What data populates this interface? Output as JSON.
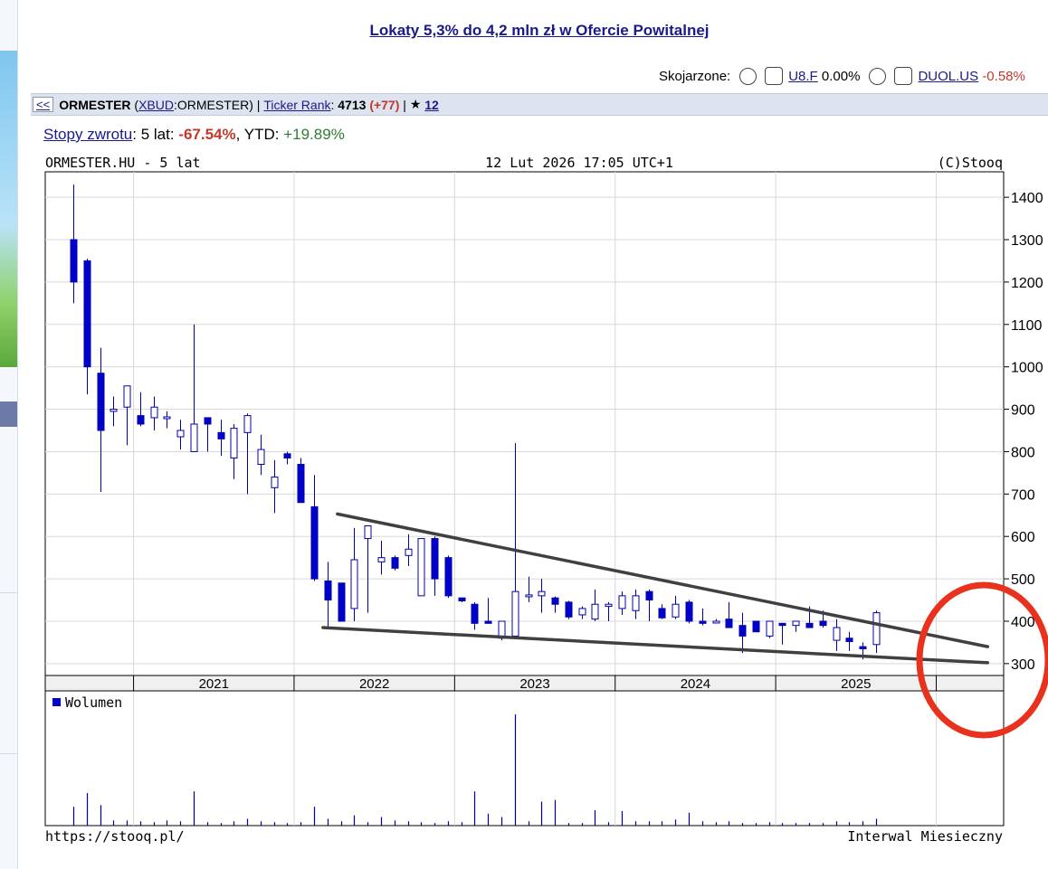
{
  "ad_link": "Lokaty 5,3% do 4,2 mln zł w Ofercie Powitalnej",
  "related": {
    "label": "Skojarzone:",
    "items": [
      {
        "symbol": "U8.F",
        "change": "0.00%"
      },
      {
        "symbol": "DUOL.US",
        "change": "-0.58%"
      }
    ]
  },
  "header_bar": {
    "back": "<<",
    "name": "ORMESTER",
    "market": "XBUD",
    "symbol_suffix": ":ORMESTER)",
    "ticker_rank_label": "Ticker Rank",
    "ticker_rank_sep": ":",
    "rank": "4713",
    "rank_change": "(+77)",
    "divider": "|",
    "star": "★",
    "watch_count": "12"
  },
  "returns": {
    "link": "Stopy zwrotu",
    "label5": ": 5 lat: ",
    "value5": "-67.54%",
    "ytd_label": ", YTD: ",
    "ytd_value": "+19.89%"
  },
  "chart_data": {
    "type": "candlestick",
    "title_left": "ORMESTER.HU - 5 lat",
    "title_center": "12 Lut 2026 17:05 UTC+1",
    "title_right": "(C)Stooq",
    "footer_left": "https://stooq.pl/",
    "footer_right": "Interwal Miesieczny",
    "volume_label": "Wolumen",
    "x_labels": [
      "2021",
      "2022",
      "2023",
      "2024",
      "2025"
    ],
    "y_ticks": [
      300,
      400,
      500,
      600,
      700,
      800,
      900,
      1000,
      1100,
      1200,
      1300,
      1400
    ],
    "y_range": [
      272,
      1460
    ],
    "grid": true,
    "colors": {
      "up": "#ffffff",
      "down": "#0000cc",
      "outline": "#0000aa",
      "trendline": "#404040",
      "highlight": "#e8321e"
    },
    "candles": [
      {
        "o": 1300,
        "h": 1430,
        "l": 1150,
        "c": 1200,
        "v": 22
      },
      {
        "o": 1250,
        "h": 1255,
        "l": 935,
        "c": 1000,
        "v": 38
      },
      {
        "o": 985,
        "h": 1045,
        "l": 705,
        "c": 850,
        "v": 24
      },
      {
        "o": 895,
        "h": 930,
        "l": 860,
        "c": 900,
        "v": 6
      },
      {
        "o": 905,
        "h": 955,
        "l": 815,
        "c": 955,
        "v": 6
      },
      {
        "o": 885,
        "h": 940,
        "l": 860,
        "c": 865,
        "v": 5
      },
      {
        "o": 880,
        "h": 930,
        "l": 850,
        "c": 905,
        "v": 4
      },
      {
        "o": 880,
        "h": 895,
        "l": 855,
        "c": 882,
        "v": 6
      },
      {
        "o": 835,
        "h": 875,
        "l": 805,
        "c": 850,
        "v": 5
      },
      {
        "o": 800,
        "h": 1100,
        "l": 800,
        "c": 865,
        "v": 40
      },
      {
        "o": 880,
        "h": 880,
        "l": 800,
        "c": 865,
        "v": 4
      },
      {
        "o": 845,
        "h": 875,
        "l": 790,
        "c": 830,
        "v": 3
      },
      {
        "o": 785,
        "h": 865,
        "l": 735,
        "c": 855,
        "v": 5
      },
      {
        "o": 845,
        "h": 890,
        "l": 700,
        "c": 885,
        "v": 8
      },
      {
        "o": 770,
        "h": 840,
        "l": 745,
        "c": 805,
        "v": 5
      },
      {
        "o": 715,
        "h": 780,
        "l": 655,
        "c": 740,
        "v": 4
      },
      {
        "o": 795,
        "h": 800,
        "l": 770,
        "c": 785,
        "v": 3
      },
      {
        "o": 770,
        "h": 785,
        "l": 680,
        "c": 680,
        "v": 4
      },
      {
        "o": 670,
        "h": 745,
        "l": 495,
        "c": 500,
        "v": 22
      },
      {
        "o": 495,
        "h": 540,
        "l": 385,
        "c": 450,
        "v": 8
      },
      {
        "o": 490,
        "h": 490,
        "l": 400,
        "c": 400,
        "v": 5
      },
      {
        "o": 430,
        "h": 620,
        "l": 400,
        "c": 545,
        "v": 12
      },
      {
        "o": 595,
        "h": 625,
        "l": 420,
        "c": 625,
        "v": 4
      },
      {
        "o": 540,
        "h": 590,
        "l": 510,
        "c": 550,
        "v": 10
      },
      {
        "o": 550,
        "h": 555,
        "l": 520,
        "c": 525,
        "v": 6
      },
      {
        "o": 555,
        "h": 605,
        "l": 530,
        "c": 570,
        "v": 5
      },
      {
        "o": 460,
        "h": 595,
        "l": 460,
        "c": 595,
        "v": 4
      },
      {
        "o": 595,
        "h": 600,
        "l": 460,
        "c": 500,
        "v": 3
      },
      {
        "o": 550,
        "h": 555,
        "l": 455,
        "c": 460,
        "v": 5
      },
      {
        "o": 455,
        "h": 455,
        "l": 445,
        "c": 448,
        "v": 4
      },
      {
        "o": 440,
        "h": 445,
        "l": 380,
        "c": 395,
        "v": 40
      },
      {
        "o": 400,
        "h": 455,
        "l": 395,
        "c": 395,
        "v": 14
      },
      {
        "o": 360,
        "h": 400,
        "l": 355,
        "c": 400,
        "v": 10
      },
      {
        "o": 365,
        "h": 820,
        "l": 360,
        "c": 470,
        "v": 130
      },
      {
        "o": 460,
        "h": 505,
        "l": 445,
        "c": 462,
        "v": 5
      },
      {
        "o": 460,
        "h": 500,
        "l": 420,
        "c": 470,
        "v": 28
      },
      {
        "o": 455,
        "h": 458,
        "l": 420,
        "c": 440,
        "v": 30
      },
      {
        "o": 445,
        "h": 448,
        "l": 405,
        "c": 410,
        "v": 3
      },
      {
        "o": 415,
        "h": 435,
        "l": 405,
        "c": 430,
        "v": 3
      },
      {
        "o": 405,
        "h": 475,
        "l": 400,
        "c": 440,
        "v": 18
      },
      {
        "o": 435,
        "h": 445,
        "l": 400,
        "c": 440,
        "v": 4
      },
      {
        "o": 430,
        "h": 470,
        "l": 415,
        "c": 460,
        "v": 17
      },
      {
        "o": 425,
        "h": 475,
        "l": 405,
        "c": 460,
        "v": 5
      },
      {
        "o": 470,
        "h": 475,
        "l": 400,
        "c": 450,
        "v": 5
      },
      {
        "o": 430,
        "h": 440,
        "l": 405,
        "c": 408,
        "v": 5
      },
      {
        "o": 410,
        "h": 460,
        "l": 405,
        "c": 440,
        "v": 7
      },
      {
        "o": 445,
        "h": 450,
        "l": 395,
        "c": 400,
        "v": 15
      },
      {
        "o": 400,
        "h": 430,
        "l": 390,
        "c": 395,
        "v": 5
      },
      {
        "o": 400,
        "h": 405,
        "l": 395,
        "c": 400,
        "v": 4
      },
      {
        "o": 405,
        "h": 445,
        "l": 390,
        "c": 385,
        "v": 5
      },
      {
        "o": 390,
        "h": 420,
        "l": 325,
        "c": 365,
        "v": 3
      },
      {
        "o": 400,
        "h": 400,
        "l": 375,
        "c": 375,
        "v": 3
      },
      {
        "o": 365,
        "h": 400,
        "l": 360,
        "c": 400,
        "v": 4
      },
      {
        "o": 395,
        "h": 395,
        "l": 345,
        "c": 390,
        "v": 3
      },
      {
        "o": 390,
        "h": 400,
        "l": 375,
        "c": 400,
        "v": 3
      },
      {
        "o": 395,
        "h": 435,
        "l": 385,
        "c": 385,
        "v": 3
      },
      {
        "o": 400,
        "h": 425,
        "l": 385,
        "c": 390,
        "v": 3
      },
      {
        "o": 355,
        "h": 405,
        "l": 330,
        "c": 385,
        "v": 5
      },
      {
        "o": 360,
        "h": 375,
        "l": 330,
        "c": 352,
        "v": 4
      },
      {
        "o": 340,
        "h": 350,
        "l": 310,
        "c": 335,
        "v": 5
      },
      {
        "o": 345,
        "h": 425,
        "l": 325,
        "c": 420,
        "v": 8
      }
    ],
    "trendlines": [
      {
        "x1": 2022.27,
        "y1": 653,
        "x2": 2026.32,
        "y2": 340
      },
      {
        "x1": 2022.18,
        "y1": 385,
        "x2": 2026.32,
        "y2": 302
      }
    ]
  }
}
